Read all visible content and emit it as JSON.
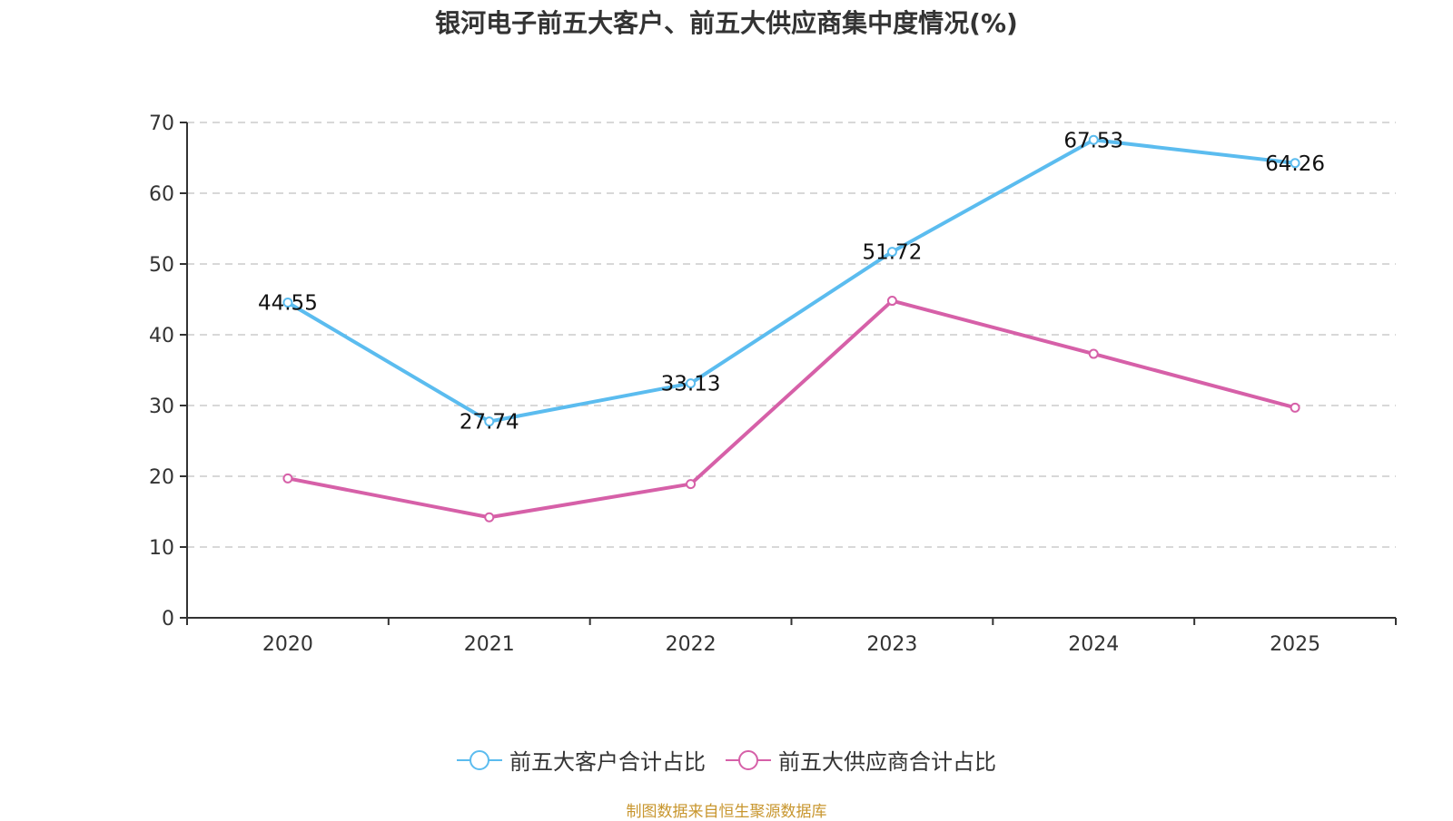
{
  "chart_data": {
    "type": "line",
    "title": "银河电子前五大客户、前五大供应商集中度情况(%)",
    "xlabel": "",
    "ylabel": "",
    "categories": [
      "2020",
      "2021",
      "2022",
      "2023",
      "2024",
      "2025"
    ],
    "ylim": [
      0,
      70
    ],
    "yticks": [
      0,
      10,
      20,
      30,
      40,
      50,
      60,
      70
    ],
    "grid": true,
    "legend_position": "bottom",
    "series": [
      {
        "name": "前五大客户合计占比",
        "color": "#5bbcef",
        "values": [
          44.55,
          27.74,
          33.13,
          51.72,
          67.53,
          64.26
        ],
        "labels": [
          "44.55",
          "27.74",
          "33.13",
          "51.72",
          "67.53",
          "64.26"
        ],
        "show_labels": true
      },
      {
        "name": "前五大供应商合计占比",
        "color": "#d660a8",
        "values": [
          19.7,
          14.2,
          18.9,
          44.8,
          37.3,
          29.7
        ],
        "show_labels": false
      }
    ]
  },
  "source_note": "制图数据来自恒生聚源数据库"
}
